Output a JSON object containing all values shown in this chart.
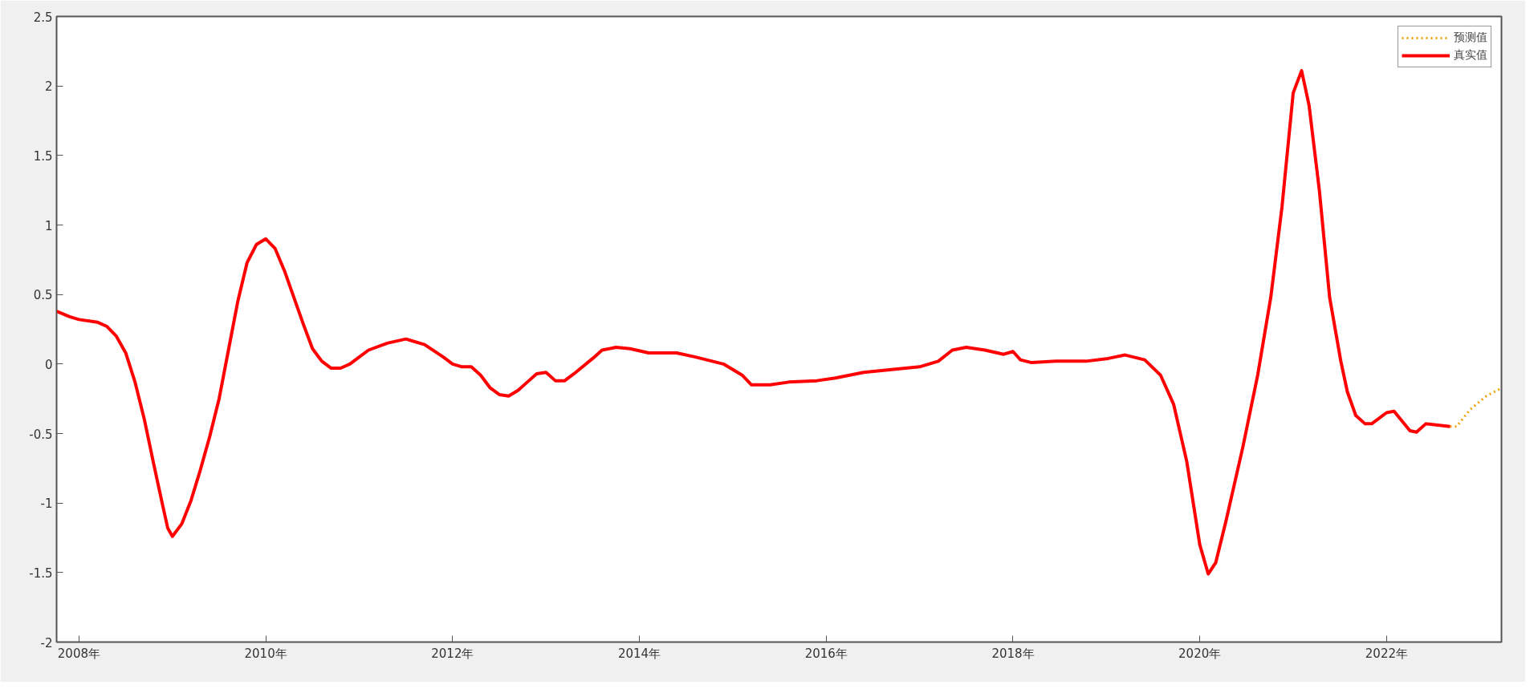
{
  "chart_data": {
    "type": "line",
    "xlim": [
      2007.76,
      2023.23
    ],
    "xticks": [
      {
        "value": 2008,
        "label": "2008年"
      },
      {
        "value": 2010,
        "label": "2010年"
      },
      {
        "value": 2012,
        "label": "2012年"
      },
      {
        "value": 2014,
        "label": "2014年"
      },
      {
        "value": 2016,
        "label": "2016年"
      },
      {
        "value": 2018,
        "label": "2018年"
      },
      {
        "value": 2020,
        "label": "2020年"
      },
      {
        "value": 2022,
        "label": "2022年"
      }
    ],
    "ylim": [
      -2,
      2.5
    ],
    "yticks": [
      -2,
      -1.5,
      -1,
      -0.5,
      0,
      0.5,
      1,
      1.5,
      2,
      2.5
    ],
    "grid": false,
    "legend": "top right",
    "series": [
      {
        "name": "预测值",
        "color": "#f0a30a",
        "line_style": "dotted",
        "x": [
          2022.68,
          2022.75,
          2022.89,
          2023.07,
          2023.21
        ],
        "values": [
          -0.45,
          -0.45,
          -0.33,
          -0.23,
          -0.18
        ]
      },
      {
        "name": "真实值",
        "color": "#ff0000",
        "line_style": "solid",
        "x": [
          2007.76,
          2007.9,
          2008.0,
          2008.2,
          2008.3,
          2008.4,
          2008.5,
          2008.6,
          2008.7,
          2008.8,
          2008.9,
          2008.95,
          2009.0,
          2009.1,
          2009.2,
          2009.3,
          2009.4,
          2009.5,
          2009.6,
          2009.7,
          2009.8,
          2009.9,
          2010.0,
          2010.1,
          2010.2,
          2010.3,
          2010.4,
          2010.5,
          2010.6,
          2010.7,
          2010.8,
          2010.9,
          2011.0,
          2011.1,
          2011.3,
          2011.5,
          2011.7,
          2011.9,
          2012.0,
          2012.1,
          2012.2,
          2012.3,
          2012.4,
          2012.5,
          2012.6,
          2012.7,
          2012.8,
          2012.9,
          2013.0,
          2013.1,
          2013.2,
          2013.3,
          2013.5,
          2013.6,
          2013.75,
          2013.9,
          2014.1,
          2014.4,
          2014.6,
          2014.9,
          2015.1,
          2015.2,
          2015.4,
          2015.6,
          2015.9,
          2016.1,
          2016.4,
          2016.7,
          2017.0,
          2017.2,
          2017.35,
          2017.5,
          2017.7,
          2017.9,
          2018.0,
          2018.08,
          2018.2,
          2018.46,
          2018.78,
          2019.02,
          2019.2,
          2019.41,
          2019.58,
          2019.72,
          2019.86,
          2020.0,
          2020.09,
          2020.17,
          2020.28,
          2020.46,
          2020.62,
          2020.76,
          2020.88,
          2021.0,
          2021.09,
          2021.17,
          2021.28,
          2021.39,
          2021.51,
          2021.58,
          2021.67,
          2021.77,
          2021.84,
          2022.0,
          2022.08,
          2022.25,
          2022.32,
          2022.42,
          2022.68
        ],
        "values": [
          0.38,
          0.34,
          0.32,
          0.3,
          0.27,
          0.2,
          0.08,
          -0.13,
          -0.4,
          -0.72,
          -1.03,
          -1.18,
          -1.24,
          -1.15,
          -0.98,
          -0.76,
          -0.52,
          -0.25,
          0.1,
          0.45,
          0.73,
          0.86,
          0.9,
          0.83,
          0.67,
          0.48,
          0.29,
          0.11,
          0.02,
          -0.03,
          -0.03,
          0.0,
          0.05,
          0.1,
          0.15,
          0.18,
          0.14,
          0.05,
          0.0,
          -0.02,
          -0.02,
          -0.08,
          -0.17,
          -0.22,
          -0.23,
          -0.19,
          -0.13,
          -0.07,
          -0.06,
          -0.12,
          -0.12,
          -0.07,
          0.04,
          0.1,
          0.12,
          0.11,
          0.08,
          0.08,
          0.05,
          0.0,
          -0.08,
          -0.15,
          -0.15,
          -0.13,
          -0.12,
          -0.1,
          -0.06,
          -0.04,
          -0.02,
          0.02,
          0.1,
          0.12,
          0.1,
          0.07,
          0.09,
          0.03,
          0.01,
          0.02,
          0.02,
          0.04,
          0.065,
          0.03,
          -0.08,
          -0.29,
          -0.7,
          -1.3,
          -1.51,
          -1.43,
          -1.13,
          -0.6,
          -0.08,
          0.48,
          1.13,
          1.95,
          2.11,
          1.86,
          1.25,
          0.48,
          0.02,
          -0.2,
          -0.37,
          -0.43,
          -0.43,
          -0.35,
          -0.34,
          -0.48,
          -0.49,
          -0.43,
          -0.45
        ]
      }
    ]
  }
}
